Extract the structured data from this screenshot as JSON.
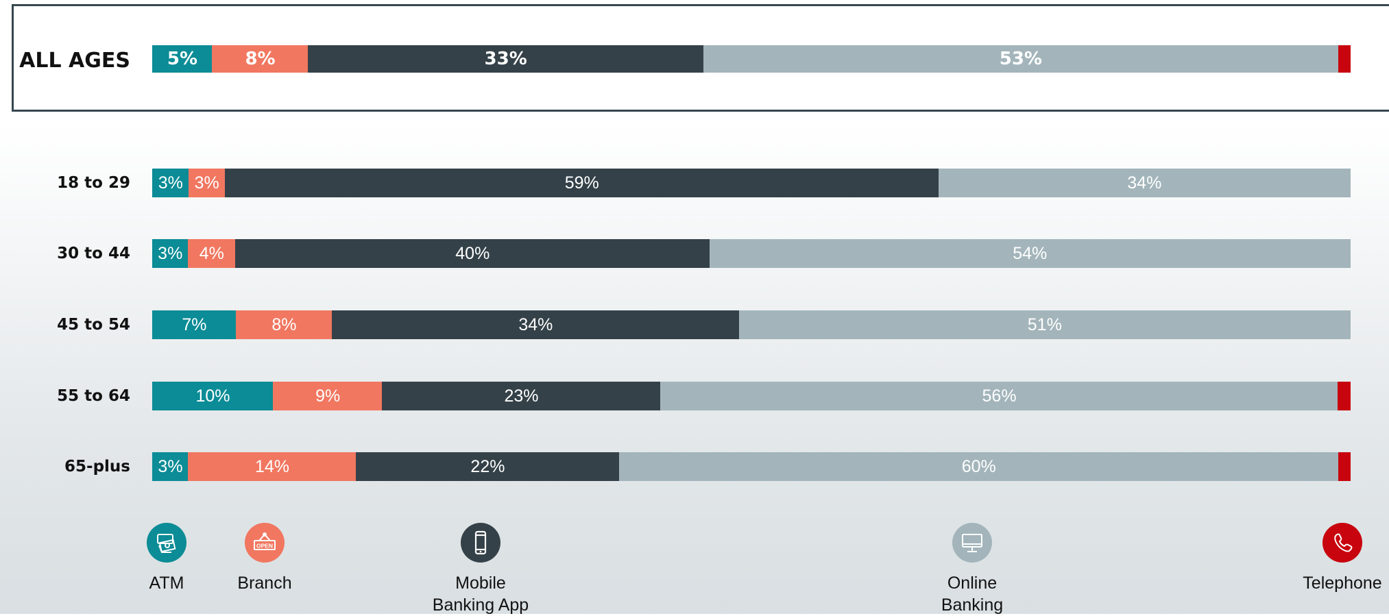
{
  "chart_data": {
    "type": "bar",
    "orientation": "horizontal",
    "stacked": true,
    "percent_stacked": true,
    "categories": [
      "ALL AGES",
      "18 to 29",
      "30 to 44",
      "45 to 54",
      "55 to 64",
      "65-plus"
    ],
    "series": [
      {
        "name": "ATM",
        "color": "#0b8c96",
        "values": [
          5,
          3,
          3,
          7,
          10,
          3
        ]
      },
      {
        "name": "Branch",
        "color": "#f17760",
        "values": [
          8,
          3,
          4,
          8,
          9,
          14
        ]
      },
      {
        "name": "Mobile Banking App",
        "color": "#344148",
        "values": [
          33,
          59,
          40,
          34,
          23,
          22
        ]
      },
      {
        "name": "Online Banking",
        "color": "#a3b5bb",
        "values": [
          53,
          34,
          54,
          51,
          56,
          60
        ]
      },
      {
        "name": "Telephone",
        "color": "#c8040e",
        "values": [
          1,
          0,
          0,
          0,
          1,
          1
        ]
      }
    ],
    "data_labels": [
      [
        "5%",
        "8%",
        "33%",
        "53%",
        ""
      ],
      [
        "3%",
        "3%",
        "59%",
        "34%",
        ""
      ],
      [
        "3%",
        "4%",
        "40%",
        "54%",
        ""
      ],
      [
        "7%",
        "8%",
        "34%",
        "51%",
        ""
      ],
      [
        "10%",
        "9%",
        "23%",
        "56%",
        ""
      ],
      [
        "3%",
        "14%",
        "22%",
        "60%",
        ""
      ]
    ],
    "highlighted_category": "ALL AGES",
    "xlim": [
      0,
      100
    ],
    "grid": false,
    "legend_position": "bottom",
    "legend": [
      {
        "label": "ATM",
        "icon": "atm-cash-icon",
        "color": "#0b8c96"
      },
      {
        "label": "Branch",
        "icon": "open-sign-icon",
        "color": "#f17760"
      },
      {
        "label": "Mobile\nBanking App",
        "icon": "smartphone-icon",
        "color": "#344148"
      },
      {
        "label": "Online\nBanking",
        "icon": "desktop-monitor-icon",
        "color": "#a3b5bb"
      },
      {
        "label": "Telephone",
        "icon": "telephone-icon",
        "color": "#c8040e"
      }
    ]
  },
  "icon_text": {
    "branch_sign": "OPEN"
  }
}
